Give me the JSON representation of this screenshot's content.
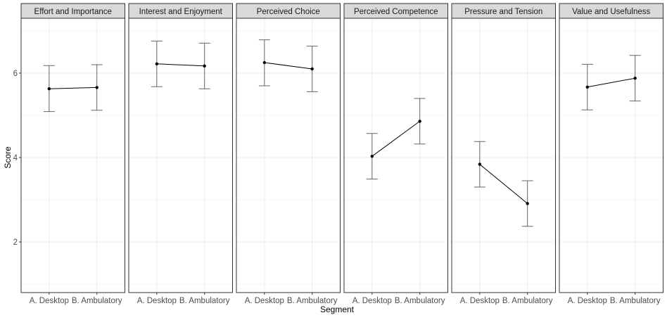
{
  "chart_data": {
    "type": "line",
    "xlabel": "Segment",
    "ylabel": "Score",
    "ylim": [
      0.8,
      7.3
    ],
    "yticks": [
      2,
      4,
      6
    ],
    "categories": [
      "A. Desktop",
      "B. Ambulatory"
    ],
    "grid": true,
    "facets": [
      {
        "title": "Effort and Importance",
        "values": [
          5.63,
          5.66
        ],
        "lower": [
          5.09,
          5.12
        ],
        "upper": [
          6.18,
          6.2
        ]
      },
      {
        "title": "Interest and Enjoyment",
        "values": [
          6.22,
          6.17
        ],
        "lower": [
          5.68,
          5.63
        ],
        "upper": [
          6.76,
          6.71
        ]
      },
      {
        "title": "Perceived Choice",
        "values": [
          6.25,
          6.1
        ],
        "lower": [
          5.7,
          5.56
        ],
        "upper": [
          6.79,
          6.64
        ]
      },
      {
        "title": "Perceived Competence",
        "values": [
          4.03,
          4.86
        ],
        "lower": [
          3.49,
          4.32
        ],
        "upper": [
          4.57,
          5.4
        ]
      },
      {
        "title": "Pressure and Tension",
        "values": [
          3.84,
          2.91
        ],
        "lower": [
          3.3,
          2.37
        ],
        "upper": [
          4.38,
          3.45
        ]
      },
      {
        "title": "Value and Usefulness",
        "values": [
          5.67,
          5.88
        ],
        "lower": [
          5.13,
          5.34
        ],
        "upper": [
          6.21,
          6.42
        ]
      }
    ],
    "colors": {
      "line": "#000000",
      "errorbar": "#666666",
      "strip_fill": "#d9d9d9",
      "panel_border": "#333333",
      "grid_major": "#ebebeb",
      "grid_minor": "#f5f5f5",
      "axis_text": "#4d4d4d"
    }
  }
}
